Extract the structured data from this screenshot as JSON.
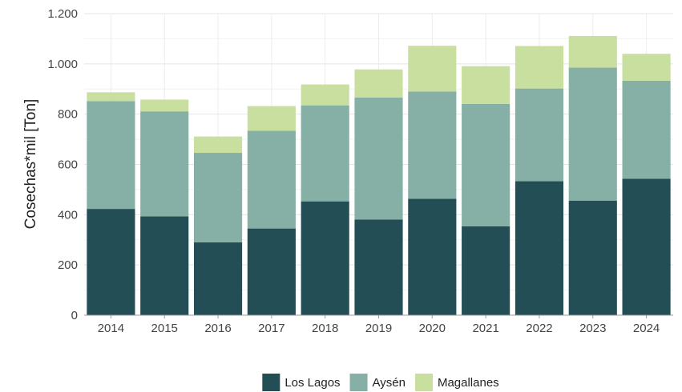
{
  "chart_data": {
    "type": "bar",
    "stacked": true,
    "title": "",
    "xlabel": "",
    "ylabel": "Cosechas*mil [Ton]",
    "categories": [
      "2014",
      "2015",
      "2016",
      "2017",
      "2018",
      "2019",
      "2020",
      "2021",
      "2022",
      "2023",
      "2024"
    ],
    "series": [
      {
        "name": "Los Lagos",
        "color": "#234e55",
        "values": [
          423,
          393,
          290,
          345,
          453,
          381,
          463,
          354,
          533,
          456,
          543
        ]
      },
      {
        "name": "Aysén",
        "color": "#86afa5",
        "values": [
          429,
          418,
          356,
          389,
          382,
          485,
          427,
          487,
          369,
          529,
          390
        ]
      },
      {
        "name": "Magallanes",
        "color": "#c9df9f",
        "values": [
          35,
          47,
          65,
          98,
          83,
          112,
          182,
          150,
          169,
          126,
          107
        ]
      }
    ],
    "ylim": [
      0,
      1200
    ],
    "yticks": [
      0,
      200,
      400,
      600,
      800,
      1000,
      1200
    ],
    "ytick_labels": [
      "0",
      "200",
      "400",
      "600",
      "800",
      "1.000",
      "1.200"
    ],
    "grid": true,
    "legend_position": "bottom"
  }
}
